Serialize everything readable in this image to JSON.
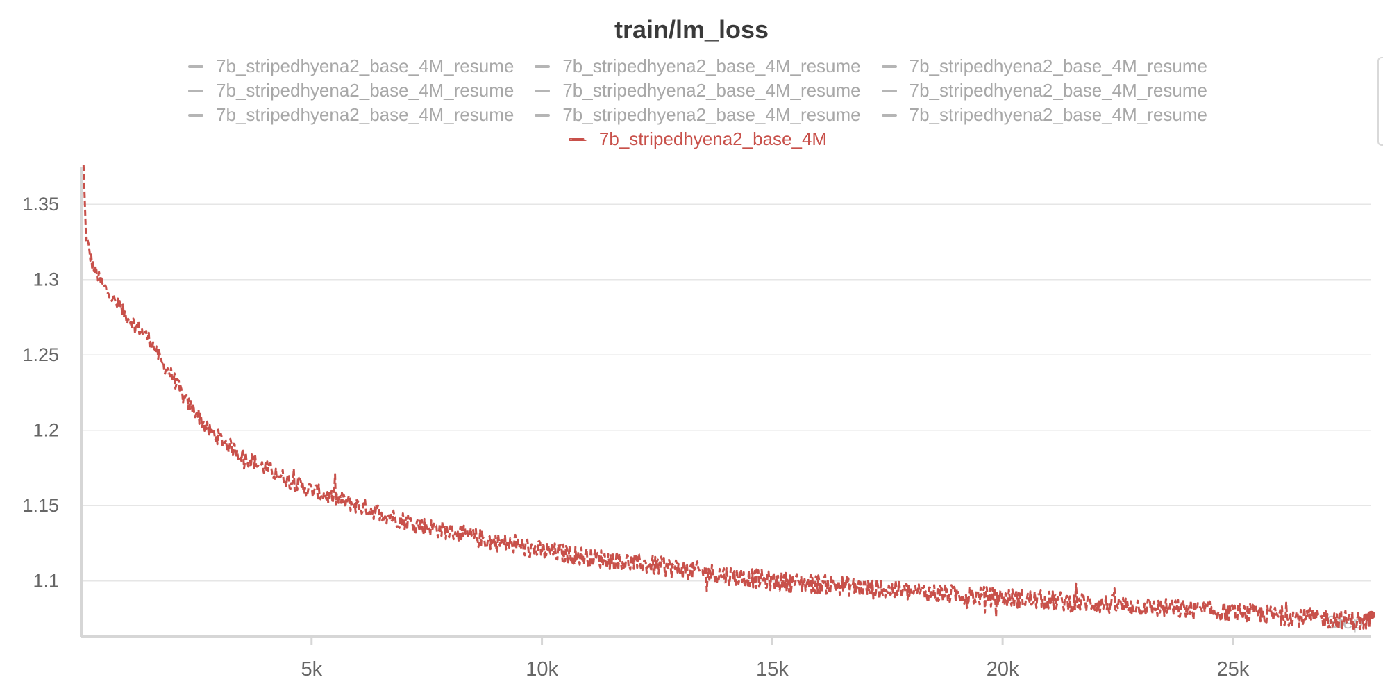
{
  "title": "train/lm_loss",
  "legend": {
    "rows": [
      [
        "7b_stripedhyena2_base_4M_resume",
        "7b_stripedhyena2_base_4M_resume",
        "7b_stripedhyena2_base_4M_resume"
      ],
      [
        "7b_stripedhyena2_base_4M_resume",
        "7b_stripedhyena2_base_4M_resume",
        "7b_stripedhyena2_base_4M_resume"
      ],
      [
        "7b_stripedhyena2_base_4M_resume",
        "7b_stripedhyena2_base_4M_resume",
        "7b_stripedhyena2_base_4M_resume"
      ]
    ],
    "active": "7b_stripedhyena2_base_4M"
  },
  "colors": {
    "active_series": "#c8504a",
    "inactive_series": "#b5b5b5",
    "grid": "#e6e6e6",
    "axis": "#d6d6d6",
    "tick_text": "#666666"
  },
  "chart_data": {
    "type": "line",
    "title": "train/lm_loss",
    "xlabel": "Step",
    "ylabel": "",
    "xlim": [
      0,
      28000
    ],
    "ylim": [
      1.063,
      1.375
    ],
    "x_ticks": [
      5000,
      10000,
      15000,
      20000,
      25000
    ],
    "x_tick_labels": [
      "5k",
      "10k",
      "15k",
      "20k",
      "25k"
    ],
    "y_ticks": [
      1.1,
      1.15,
      1.2,
      1.25,
      1.3,
      1.35
    ],
    "y_tick_labels": [
      "1.1",
      "1.15",
      "1.2",
      "1.25",
      "1.3",
      "1.35"
    ],
    "grid": true,
    "legend_position": "top-center",
    "series": [
      {
        "name": "7b_stripedhyena2_base_4M",
        "style": "dashed",
        "x": [
          50,
          100,
          200,
          300,
          500,
          750,
          1000,
          1250,
          1500,
          1750,
          2000,
          2250,
          2500,
          2750,
          3000,
          3500,
          4000,
          4500,
          5000,
          5500,
          6000,
          6500,
          7000,
          7500,
          8000,
          8500,
          9000,
          9500,
          10000,
          10500,
          11000,
          11500,
          12000,
          12500,
          13000,
          13500,
          14000,
          14500,
          15000,
          15500,
          16000,
          16500,
          17000,
          17500,
          18000,
          18500,
          19000,
          19500,
          20000,
          20500,
          21000,
          21500,
          22000,
          22500,
          23000,
          23500,
          24000,
          24500,
          25000,
          25500,
          26000,
          26500,
          27000,
          27500,
          28000
        ],
        "y": [
          1.375,
          1.33,
          1.315,
          1.305,
          1.295,
          1.285,
          1.275,
          1.268,
          1.26,
          1.245,
          1.235,
          1.22,
          1.212,
          1.2,
          1.195,
          1.183,
          1.175,
          1.167,
          1.16,
          1.155,
          1.15,
          1.145,
          1.14,
          1.136,
          1.133,
          1.129,
          1.126,
          1.123,
          1.12,
          1.118,
          1.116,
          1.114,
          1.112,
          1.11,
          1.108,
          1.106,
          1.104,
          1.102,
          1.1,
          1.099,
          1.098,
          1.097,
          1.095,
          1.094,
          1.093,
          1.092,
          1.091,
          1.09,
          1.089,
          1.088,
          1.087,
          1.086,
          1.085,
          1.084,
          1.083,
          1.082,
          1.081,
          1.08,
          1.079,
          1.078,
          1.077,
          1.076,
          1.075,
          1.074,
          1.073
        ]
      }
    ]
  }
}
